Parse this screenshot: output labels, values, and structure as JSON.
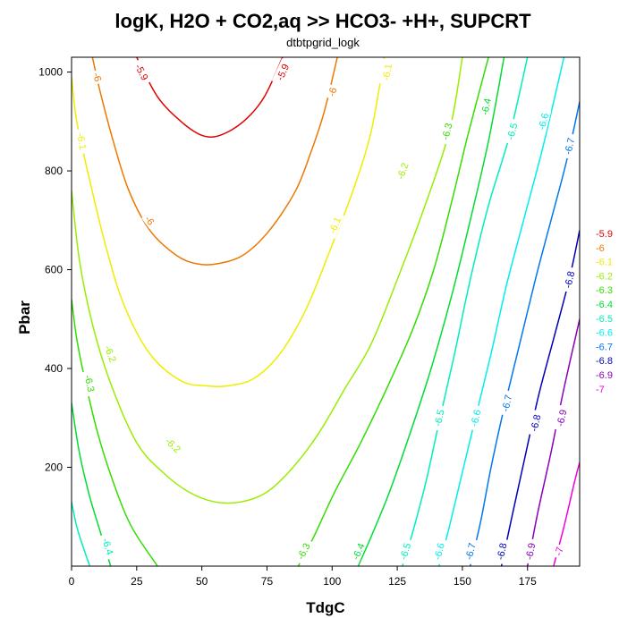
{
  "chart_data": {
    "type": "contour",
    "title": "logK, H2O + CO2,aq >> HCO3- +H+, SUPCRT",
    "subtitle": "dtbtpgrid_logk",
    "xlabel": "TdgC",
    "ylabel": "Pbar",
    "xlim": [
      0,
      195
    ],
    "ylim": [
      0,
      1030
    ],
    "xticks": [
      "0",
      "25",
      "50",
      "75",
      "100",
      "125",
      "150",
      "175"
    ],
    "yticks": [
      "200",
      "400",
      "600",
      "800",
      "1000"
    ],
    "grid": false,
    "legend_position": "right",
    "levels": [
      {
        "value": "-5.9",
        "color": "#e00000",
        "label": "-5.9"
      },
      {
        "value": "-6",
        "color": "#ee7700",
        "label": "-6"
      },
      {
        "value": "-6.1",
        "color": "#eeee00",
        "label": "-6.1"
      },
      {
        "value": "-6.2",
        "color": "#99ee00",
        "label": "-6.2"
      },
      {
        "value": "-6.3",
        "color": "#33dd00",
        "label": "-6.3"
      },
      {
        "value": "-6.4",
        "color": "#00dd33",
        "label": "-6.4"
      },
      {
        "value": "-6.5",
        "color": "#00eebb",
        "label": "-6.5"
      },
      {
        "value": "-6.6",
        "color": "#00eeee",
        "label": "-6.6"
      },
      {
        "value": "-6.7",
        "color": "#0077ee",
        "label": "-6.7"
      },
      {
        "value": "-6.8",
        "color": "#0000bb",
        "label": "-6.8"
      },
      {
        "value": "-6.9",
        "color": "#8800bb",
        "label": "-6.9"
      },
      {
        "value": "-7",
        "color": "#ee00dd",
        "label": "-7"
      }
    ],
    "contours": [
      {
        "level": "-5.9",
        "color": "#e00000",
        "lines": [
          {
            "points": [
              [
                25,
                1030
              ],
              [
                33,
                950
              ],
              [
                42,
                900
              ],
              [
                50,
                872
              ],
              [
                57,
                872
              ],
              [
                66,
                900
              ],
              [
                74,
                950
              ],
              [
                81,
                1030
              ]
            ],
            "labels": [
              {
                "text": "-5.9",
                "at": [
                  27,
                  1000
                ]
              },
              {
                "text": "-5.9",
                "at": [
                  81,
                  1000
                ]
              }
            ]
          }
        ]
      },
      {
        "level": "-6",
        "color": "#ee7700",
        "lines": [
          {
            "points": [
              [
                8,
                1030
              ],
              [
                11,
                960
              ],
              [
                16,
                860
              ],
              [
                22,
                760
              ],
              [
                30,
                680
              ],
              [
                40,
                630
              ],
              [
                48,
                612
              ],
              [
                56,
                612
              ],
              [
                66,
                630
              ],
              [
                76,
                680
              ],
              [
                86,
                760
              ],
              [
                92,
                840
              ],
              [
                97,
                920
              ],
              [
                102,
                1030
              ]
            ],
            "labels": [
              {
                "text": "-6",
                "at": [
                  10,
                  990
                ]
              },
              {
                "text": "-6",
                "at": [
                  30,
                  700
                ]
              },
              {
                "text": "-6",
                "at": [
                  100,
                  960
                ]
              }
            ]
          }
        ]
      },
      {
        "level": "-6.1",
        "color": "#eeee00",
        "lines": [
          {
            "points": [
              [
                0,
                990
              ],
              [
                2,
                900
              ],
              [
                7,
                780
              ],
              [
                13,
                650
              ],
              [
                20,
                530
              ],
              [
                30,
                430
              ],
              [
                42,
                375
              ],
              [
                52,
                365
              ],
              [
                60,
                365
              ],
              [
                70,
                380
              ],
              [
                80,
                430
              ],
              [
                90,
                520
              ],
              [
                100,
                650
              ],
              [
                108,
                760
              ],
              [
                115,
                880
              ],
              [
                120,
                1030
              ]
            ],
            "labels": [
              {
                "text": "-6.1",
                "at": [
                  4,
                  860
                ]
              },
              {
                "text": "-6.1",
                "at": [
                  101,
                  690
                ]
              },
              {
                "text": "-6.1",
                "at": [
                  121,
                  1000
                ]
              }
            ]
          }
        ]
      },
      {
        "level": "-6.2",
        "color": "#99ee00",
        "lines": [
          {
            "points": [
              [
                0,
                760
              ],
              [
                3,
                620
              ],
              [
                8,
                490
              ],
              [
                15,
                370
              ],
              [
                25,
                250
              ],
              [
                35,
                190
              ],
              [
                45,
                150
              ],
              [
                55,
                130
              ],
              [
                65,
                130
              ],
              [
                75,
                150
              ],
              [
                85,
                200
              ],
              [
                95,
                270
              ],
              [
                105,
                360
              ],
              [
                115,
                450
              ],
              [
                125,
                580
              ],
              [
                135,
                720
              ],
              [
                145,
                880
              ],
              [
                150,
                1030
              ]
            ],
            "labels": [
              {
                "text": "-6.2",
                "at": [
                  15,
                  430
                ]
              },
              {
                "text": "-6.2",
                "at": [
                  39,
                  245
                ]
              },
              {
                "text": "-6.2",
                "at": [
                  127,
                  800
                ]
              }
            ]
          }
        ]
      },
      {
        "level": "-6.3",
        "color": "#33dd00",
        "lines": [
          {
            "points": [
              [
                0,
                540
              ],
              [
                2,
                460
              ],
              [
                5,
                380
              ],
              [
                10,
                270
              ],
              [
                16,
                170
              ],
              [
                23,
                80
              ],
              [
                33,
                0
              ]
            ],
            "labels": [
              {
                "text": "-6.3",
                "at": [
                  7,
                  370
                ]
              }
            ]
          },
          {
            "points": [
              [
                87,
                0
              ],
              [
                93,
                60
              ],
              [
                101,
                150
              ],
              [
                111,
                250
              ],
              [
                121,
                360
              ],
              [
                131,
                480
              ],
              [
                139,
                600
              ],
              [
                146,
                740
              ],
              [
                152,
                870
              ],
              [
                160,
                1030
              ]
            ],
            "labels": [
              {
                "text": "-6.3",
                "at": [
                  89,
                  30
                ]
              },
              {
                "text": "-6.3",
                "at": [
                  144,
                  880
                ]
              }
            ]
          }
        ]
      },
      {
        "level": "-6.4",
        "color": "#00dd33",
        "lines": [
          {
            "points": [
              [
                0,
                330
              ],
              [
                3,
                230
              ],
              [
                7,
                140
              ],
              [
                11,
                70
              ],
              [
                15,
                0
              ]
            ],
            "labels": []
          },
          {
            "points": [
              [
                110,
                0
              ],
              [
                115,
                60
              ],
              [
                122,
                150
              ],
              [
                130,
                270
              ],
              [
                138,
                400
              ],
              [
                146,
                550
              ],
              [
                153,
                700
              ],
              [
                160,
                860
              ],
              [
                166,
                1030
              ]
            ],
            "labels": [
              {
                "text": "-6.4",
                "at": [
                  110,
                  30
                ]
              },
              {
                "text": "-6.4",
                "at": [
                  159,
                  930
                ]
              }
            ]
          }
        ]
      },
      {
        "level": "-6.5",
        "color": "#00eebb",
        "lines": [
          {
            "points": [
              [
                0,
                130
              ],
              [
                2,
                80
              ],
              [
                5,
                30
              ],
              [
                7,
                0
              ]
            ],
            "labels": [
              {
                "text": "-6.4",
                "at": [
                  14,
                  40
                ]
              }
            ]
          },
          {
            "points": [
              [
                127,
                0
              ],
              [
                131,
                70
              ],
              [
                136,
                170
              ],
              [
                141,
                290
              ],
              [
                147,
                430
              ],
              [
                153,
                580
              ],
              [
                160,
                730
              ],
              [
                168,
                870
              ],
              [
                175,
                1030
              ]
            ],
            "labels": [
              {
                "text": "-6.5",
                "at": [
                  128,
                  30
                ]
              },
              {
                "text": "-6.5",
                "at": [
                  141,
                  300
                ]
              },
              {
                "text": "-6.5",
                "at": [
                  169,
                  880
                ]
              }
            ]
          }
        ]
      },
      {
        "level": "-6.6",
        "color": "#00eeee",
        "lines": [
          {
            "points": [
              [
                141,
                0
              ],
              [
                145,
                80
              ],
              [
                150,
                190
              ],
              [
                155,
                300
              ],
              [
                161,
                430
              ],
              [
                167,
                570
              ],
              [
                174,
                710
              ],
              [
                181,
                850
              ],
              [
                189,
                1030
              ]
            ],
            "labels": [
              {
                "text": "-6.6",
                "at": [
                  141,
                  30
                ]
              },
              {
                "text": "-6.6",
                "at": [
                  155,
                  300
                ]
              },
              {
                "text": "-6.6",
                "at": [
                  181,
                  900
                ]
              }
            ]
          }
        ]
      },
      {
        "level": "-6.7",
        "color": "#0077ee",
        "lines": [
          {
            "points": [
              [
                153,
                0
              ],
              [
                157,
                90
              ],
              [
                161,
                200
              ],
              [
                166,
                320
              ],
              [
                172,
                450
              ],
              [
                178,
                580
              ],
              [
                184,
                700
              ],
              [
                190,
                820
              ],
              [
                195,
                940
              ]
            ],
            "labels": [
              {
                "text": "-6.7",
                "at": [
                  153,
                  30
                ]
              },
              {
                "text": "-6.7",
                "at": [
                  167,
                  330
                ]
              },
              {
                "text": "-6.7",
                "at": [
                  191,
                  850
                ]
              }
            ]
          }
        ]
      },
      {
        "level": "-6.8",
        "color": "#0000bb",
        "lines": [
          {
            "points": [
              [
                165,
                0
              ],
              [
                169,
                100
              ],
              [
                174,
                220
              ],
              [
                179,
                340
              ],
              [
                185,
                460
              ],
              [
                191,
                580
              ],
              [
                195,
                680
              ]
            ],
            "labels": [
              {
                "text": "-6.8",
                "at": [
                  165,
                  30
                ]
              },
              {
                "text": "-6.8",
                "at": [
                  178,
                  290
                ]
              },
              {
                "text": "-6.8",
                "at": [
                  191,
                  580
                ]
              }
            ]
          }
        ]
      },
      {
        "level": "-6.9",
        "color": "#8800bb",
        "lines": [
          {
            "points": [
              [
                175,
                0
              ],
              [
                179,
                110
              ],
              [
                184,
                230
              ],
              [
                189,
                360
              ],
              [
                195,
                500
              ]
            ],
            "labels": [
              {
                "text": "-6.9",
                "at": [
                  176,
                  30
                ]
              },
              {
                "text": "-6.9",
                "at": [
                  188,
                  300
                ]
              }
            ]
          }
        ]
      },
      {
        "level": "-7",
        "color": "#ee00dd",
        "lines": [
          {
            "points": [
              [
                185,
                0
              ],
              [
                189,
                80
              ],
              [
                193,
                170
              ],
              [
                195,
                210
              ]
            ],
            "labels": [
              {
                "text": "-7",
                "at": [
                  187,
                  30
                ]
              }
            ]
          }
        ]
      }
    ]
  }
}
